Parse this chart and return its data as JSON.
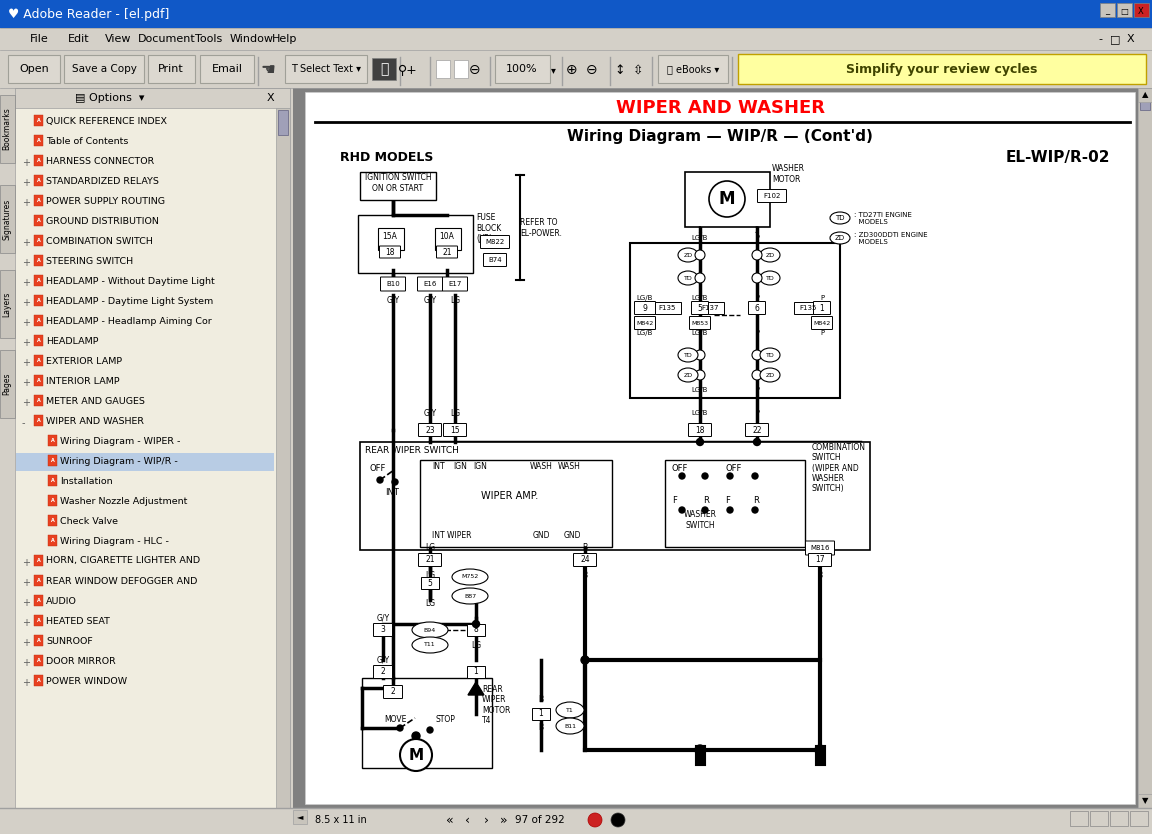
{
  "title": "Adobe Reader - [el.pdf]",
  "page_title_red": "WIPER AND WASHER",
  "page_subtitle": "Wiring Diagram — WIP/R — (Cont'd)",
  "diagram_label": "EL-WIP/R-02",
  "rhd_models": "RHD MODELS",
  "page_number": "97 of 292",
  "page_size": "8.5 x 11 in",
  "bg_color": "#d4d0c8",
  "title_bar_color": "#1c5bd8",
  "title_text_color": "#ffffff",
  "sidebar_bg": "#f0ede0",
  "bookmark_items": [
    [
      "none",
      "QUICK REFERENCE INDEX"
    ],
    [
      "none",
      "Table of Contents"
    ],
    [
      "+",
      "HARNESS CONNECTOR"
    ],
    [
      "+",
      "STANDARDIZED RELAYS"
    ],
    [
      "+",
      "POWER SUPPLY ROUTING"
    ],
    [
      "sub",
      "GROUND DISTRIBUTION"
    ],
    [
      "+",
      "COMBINATION SWITCH"
    ],
    [
      "+",
      "STEERING SWITCH"
    ],
    [
      "+",
      "HEADLAMP - Without Daytime Light"
    ],
    [
      "+",
      "HEADLAMP - Daytime Light System"
    ],
    [
      "+",
      "HEADLAMP - Headlamp Aiming Cor"
    ],
    [
      "+",
      "HEADLAMP"
    ],
    [
      "+",
      "EXTERIOR LAMP"
    ],
    [
      "+",
      "INTERIOR LAMP"
    ],
    [
      "+",
      "METER AND GAUGES"
    ],
    [
      "-",
      "WIPER AND WASHER"
    ],
    [
      "leaf",
      "Wiring Diagram - WIPER -"
    ],
    [
      "leaf_sel",
      "Wiring Diagram - WIP/R -"
    ],
    [
      "leaf",
      "Installation"
    ],
    [
      "leaf",
      "Washer Nozzle Adjustment"
    ],
    [
      "leaf",
      "Check Valve"
    ],
    [
      "leaf",
      "Wiring Diagram - HLC -"
    ],
    [
      "+",
      "HORN, CIGARETTE LIGHTER AND"
    ],
    [
      "+",
      "REAR WINDOW DEFOGGER AND"
    ],
    [
      "+",
      "AUDIO"
    ],
    [
      "+",
      "HEATED SEAT"
    ],
    [
      "+",
      "SUNROOF"
    ],
    [
      "+",
      "DOOR MIRROR"
    ],
    [
      "+",
      "POWER WINDOW"
    ]
  ],
  "side_tabs": [
    "Bookmarks",
    "Signatures",
    "Layers",
    "Pages"
  ]
}
